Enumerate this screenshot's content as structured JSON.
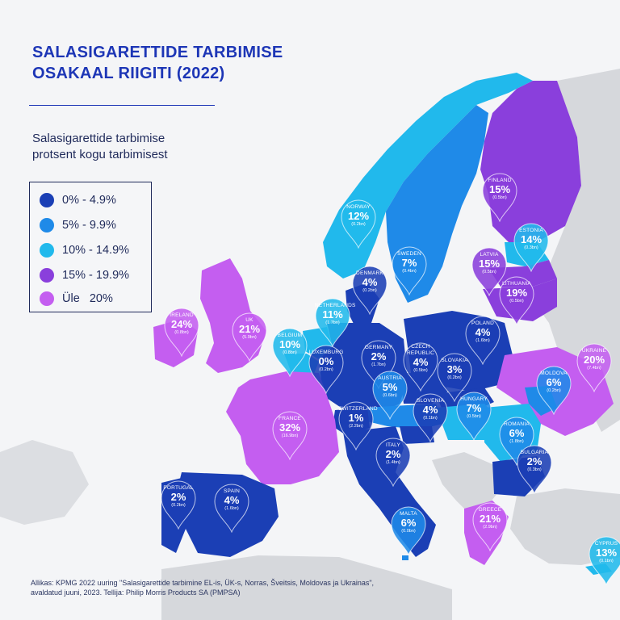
{
  "title": {
    "line1": "SALASIGARETTIDE TARBIMISE",
    "line2": "OSAKAAL RIIGITI (2022)"
  },
  "subtitle": {
    "line1": "Salasigarettide tarbimise",
    "line2": "protsent kogu tarbimisest"
  },
  "legend": [
    {
      "label": "0% - 4.9%",
      "color": "#1b3fb5"
    },
    {
      "label": "5% - 9.9%",
      "color": "#1f8ae8"
    },
    {
      "label": "10% - 14.9%",
      "color": "#21b9ec"
    },
    {
      "label": "15% - 19.9%",
      "color": "#8a3fdc"
    },
    {
      "label": "Üle   20%",
      "color": "#c45ef0"
    }
  ],
  "countries": [
    {
      "name": "FINLAND",
      "value": "15%",
      "volume": "(0.5bn)",
      "color": "#8a3fdc"
    },
    {
      "name": "NORWAY",
      "value": "12%",
      "volume": "(0.2bn)",
      "color": "#21b9ec"
    },
    {
      "name": "ESTONIA",
      "value": "14%",
      "volume": "(0.3bn)",
      "color": "#21b9ec"
    },
    {
      "name": "SWEDEN",
      "value": "7%",
      "volume": "(0.4bn)",
      "color": "#1f8ae8"
    },
    {
      "name": "LATVIA",
      "value": "15%",
      "volume": "(0.5bn)",
      "color": "#8a3fdc"
    },
    {
      "name": "DENMARK",
      "value": "4%",
      "volume": "(0.2bn)",
      "color": "#1b3fb5"
    },
    {
      "name": "LITHUANIA",
      "value": "19%",
      "volume": "(0.5bn)",
      "color": "#8a3fdc"
    },
    {
      "name": "IRELAND",
      "value": "24%",
      "volume": "(0.8bn)",
      "color": "#c45ef0"
    },
    {
      "name": "NETHERLANDS",
      "value": "11%",
      "volume": "(1.7bn)",
      "color": "#21b9ec"
    },
    {
      "name": "UK",
      "value": "21%",
      "volume": "(5.9bn)",
      "color": "#c45ef0"
    },
    {
      "name": "POLAND",
      "value": "4%",
      "volume": "(1.6bn)",
      "color": "#1b3fb5"
    },
    {
      "name": "BELGIUM",
      "value": "10%",
      "volume": "(0.8bn)",
      "color": "#21b9ec"
    },
    {
      "name": "GERMANY",
      "value": "2%",
      "volume": "(1.7bn)",
      "color": "#1b3fb5"
    },
    {
      "name": "CZECH\nREPUBLIC",
      "value": "4%",
      "volume": "(0.5bn)",
      "color": "#1b3fb5"
    },
    {
      "name": "LUXEMBURG",
      "value": "0%",
      "volume": "(0.2bn)",
      "color": "#1b3fb5"
    },
    {
      "name": "UKRAINE",
      "value": "20%",
      "volume": "(7.4bn)",
      "color": "#c45ef0"
    },
    {
      "name": "SLOVAKIA",
      "value": "3%",
      "volume": "(0.2bn)",
      "color": "#1b3fb5"
    },
    {
      "name": "MOLDOVA",
      "value": "6%",
      "volume": "(0.2bn)",
      "color": "#1f8ae8"
    },
    {
      "name": "AUSTRIA",
      "value": "5%",
      "volume": "(0.6bn)",
      "color": "#1f8ae8"
    },
    {
      "name": "FRANCE",
      "value": "32%",
      "volume": "(16.9bn)",
      "color": "#c45ef0"
    },
    {
      "name": "SWITZERLAND",
      "value": "1%",
      "volume": "(2.2bn)",
      "color": "#1b3fb5"
    },
    {
      "name": "SLOVENIA",
      "value": "4%",
      "volume": "(0.1bn)",
      "color": "#1b3fb5"
    },
    {
      "name": "HUNGARY",
      "value": "7%",
      "volume": "(0.5bn)",
      "color": "#1f8ae8"
    },
    {
      "name": "ROMANIA",
      "value": "6%",
      "volume": "(1.8bn)",
      "color": "#1f8ae8"
    },
    {
      "name": "ITALY",
      "value": "2%",
      "volume": "(1.4bn)",
      "color": "#1b3fb5"
    },
    {
      "name": "BULGARIA",
      "value": "2%",
      "volume": "(0.3bn)",
      "color": "#1b3fb5"
    },
    {
      "name": "PORTUGAL",
      "value": "2%",
      "volume": "(0.2bn)",
      "color": "#1b3fb5"
    },
    {
      "name": "SPAIN",
      "value": "4%",
      "volume": "(1.6bn)",
      "color": "#1b3fb5"
    },
    {
      "name": "MALTA",
      "value": "6%",
      "volume": "(0.0bn)",
      "color": "#1f8ae8"
    },
    {
      "name": "GREECE",
      "value": "21%",
      "volume": "(2.9bn)",
      "color": "#c45ef0"
    },
    {
      "name": "CYPRUS",
      "value": "13%",
      "volume": "(0.1bn)",
      "color": "#21b9ec"
    }
  ],
  "source": {
    "line1": "Allikas: KPMG 2022 uuring \"Salasigarettide tarbimine EL-is, ÜK-s, Norras, Šveitsis, Moldovas ja Ukrainas\",",
    "line2": "avaldatud juuni, 2023. Tellija: Philip Morris Products SA (PMPSA)"
  }
}
